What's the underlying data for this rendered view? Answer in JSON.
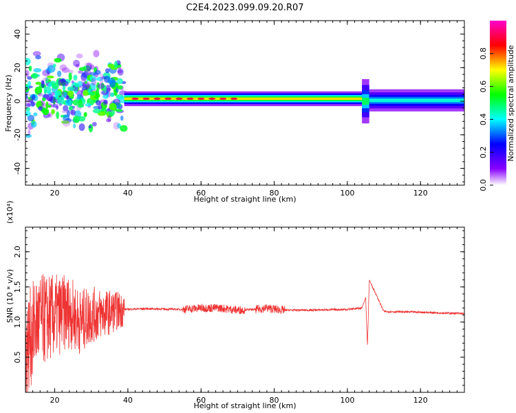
{
  "title": "C2E4.2023.099.09.20.R07",
  "chart_data": [
    {
      "type": "heatmap",
      "title": "C2E4.2023.099.09.20.R07",
      "xlabel": "Height of straight line (km)",
      "ylabel": "Frequency (Hz)",
      "xlim": [
        12,
        132
      ],
      "ylim": [
        -50,
        48
      ],
      "x_ticks": [
        "20",
        "40",
        "60",
        "80",
        "100",
        "120"
      ],
      "y_ticks": [
        "40",
        "20",
        "0",
        "-20",
        "-40"
      ],
      "colorbar": {
        "label": "Normalized spectral amplitude",
        "range": [
          0,
          1
        ],
        "ticks": [
          "0.0",
          "0.2",
          "0.4",
          "0.6",
          "0.8"
        ],
        "colors": [
          "#ffffff",
          "#8800ff",
          "#0000ff",
          "#00ffff",
          "#00ff00",
          "#ffff00",
          "#ff0000",
          "#ff00cc"
        ]
      },
      "segments": [
        {
          "x": [
            12,
            39
          ],
          "freq_center": 4,
          "freq_spread": 12,
          "note": "broadband blobs"
        },
        {
          "x": [
            39,
            104
          ],
          "freq_center": 1.5,
          "freq_spread": 2,
          "amplitude": 0.9
        },
        {
          "x": [
            104,
            106
          ],
          "freq_center": 0,
          "freq_spread": 6,
          "amplitude": 0.6
        },
        {
          "x": [
            106,
            132
          ],
          "freq_center": 0.5,
          "freq_spread": 3,
          "amplitude": 0.5
        }
      ]
    },
    {
      "type": "line",
      "xlabel": "Height of straight line (km)",
      "ylabel": "SNR (10 * v/v)",
      "scale_label": "(x10⁴)",
      "xlim": [
        12,
        132
      ],
      "ylim": [
        0.0,
        2.35
      ],
      "x_ticks": [
        "20",
        "40",
        "60",
        "80",
        "100",
        "120"
      ],
      "y_ticks": [
        "0.5",
        "1.0",
        "1.5",
        "2.0"
      ],
      "color": "#ee3333",
      "series": [
        {
          "x": [
            12,
            15,
            18,
            21,
            24,
            27,
            30,
            33,
            36,
            39,
            45,
            55,
            60,
            65,
            70,
            75,
            78,
            82,
            90,
            100,
            104,
            105,
            105.5,
            106,
            110,
            120,
            132
          ],
          "values": [
            0.6,
            1.0,
            1.05,
            1.1,
            1.15,
            1.0,
            1.1,
            1.12,
            1.15,
            1.18,
            1.19,
            1.18,
            1.2,
            1.2,
            1.17,
            1.18,
            1.2,
            1.17,
            1.17,
            1.18,
            1.2,
            1.35,
            0.65,
            1.6,
            1.15,
            1.14,
            1.12
          ]
        }
      ]
    }
  ]
}
